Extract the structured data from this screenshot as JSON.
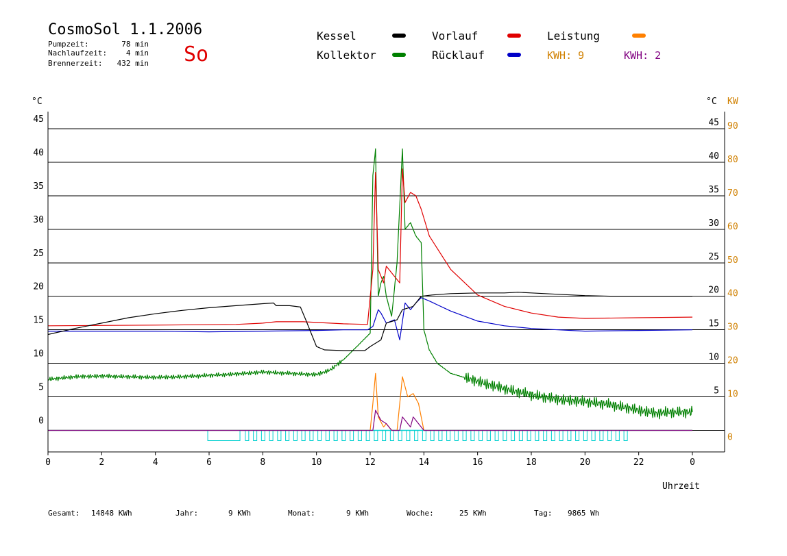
{
  "header": {
    "title": "CosmoSol 1.1.2006",
    "day": "So",
    "stats": [
      {
        "label": "Pumpzeit:",
        "value": "78 min"
      },
      {
        "label": "Nachlaufzeit:",
        "value": "4 min"
      },
      {
        "label": "Brennerzeit:",
        "value": "432 min"
      }
    ]
  },
  "legend": {
    "kessel": "Kessel",
    "kollektor": "Kollektor",
    "vorlauf": "Vorlauf",
    "ruecklauf": "Rücklauf",
    "leistung": "Leistung",
    "kwh1": "KWH: 9",
    "kwh2": "KWH: 2"
  },
  "axes": {
    "left_unit": "°C",
    "right_unit": "°C",
    "right_unit2": "KW",
    "x_label": "Uhrzeit"
  },
  "footer": {
    "gesamt_label": "Gesamt:",
    "gesamt_value": "14848 KWh",
    "jahr_label": "Jahr:",
    "jahr_value": "9 KWh",
    "monat_label": "Monat:",
    "monat_value": "9 KWh",
    "woche_label": "Woche:",
    "woche_value": "25 KWh",
    "tag_label": "Tag:",
    "tag_value": "9865 Wh"
  },
  "colors": {
    "kessel": "#000000",
    "kollektor": "#008000",
    "vorlauf": "#e00000",
    "ruecklauf": "#0000c8",
    "leistung": "#ff8000",
    "kwh2": "#800080",
    "pump": "#00d0d0",
    "title_day": "#e00000",
    "kw_axis": "#d08000"
  },
  "chart_data": {
    "type": "line",
    "title": "CosmoSol 1.1.2006",
    "xlabel": "Uhrzeit",
    "ylabel": "°C",
    "ylabel_right": "KW",
    "xlim": [
      0,
      24
    ],
    "ylim": [
      0,
      45
    ],
    "ylim_right_kw": [
      0,
      90
    ],
    "grid": true,
    "x_ticks": [
      "0",
      "2",
      "4",
      "6",
      "8",
      "10",
      "12",
      "14",
      "16",
      "18",
      "20",
      "22",
      "0"
    ],
    "y_ticks": [
      "0",
      "5",
      "10",
      "15",
      "20",
      "25",
      "30",
      "35",
      "40",
      "45"
    ],
    "y_ticks_right": [
      "5",
      "10",
      "15",
      "20",
      "25",
      "30",
      "35",
      "40",
      "45"
    ],
    "y_ticks_right_kw": [
      "0",
      "10",
      "20",
      "30",
      "40",
      "50",
      "60",
      "70",
      "80",
      "90"
    ],
    "series": [
      {
        "name": "Kessel",
        "color": "#000000",
        "points": [
          [
            0,
            14.3
          ],
          [
            1,
            15.2
          ],
          [
            2,
            16
          ],
          [
            3,
            16.8
          ],
          [
            4,
            17.4
          ],
          [
            5,
            17.9
          ],
          [
            6,
            18.3
          ],
          [
            7,
            18.6
          ],
          [
            8,
            18.9
          ],
          [
            8.4,
            19
          ],
          [
            8.5,
            18.6
          ],
          [
            9,
            18.6
          ],
          [
            9.4,
            18.4
          ],
          [
            9.6,
            16.5
          ],
          [
            10,
            12.5
          ],
          [
            10.3,
            12
          ],
          [
            11,
            11.9
          ],
          [
            11.8,
            11.9
          ],
          [
            12,
            12.5
          ],
          [
            12.4,
            13.5
          ],
          [
            12.6,
            16
          ],
          [
            13,
            16.5
          ],
          [
            13.2,
            18
          ],
          [
            13.6,
            18.5
          ],
          [
            13.9,
            20
          ],
          [
            14.3,
            20.2
          ],
          [
            15,
            20.4
          ],
          [
            16,
            20.5
          ],
          [
            17,
            20.5
          ],
          [
            17.5,
            20.6
          ],
          [
            18,
            20.5
          ],
          [
            19,
            20.3
          ],
          [
            20,
            20.1
          ],
          [
            21,
            20
          ],
          [
            22,
            20
          ],
          [
            24,
            20
          ]
        ]
      },
      {
        "name": "Vorlauf",
        "color": "#e00000",
        "points": [
          [
            0,
            15.6
          ],
          [
            4,
            15.7
          ],
          [
            7,
            15.8
          ],
          [
            8,
            16
          ],
          [
            8.5,
            16.2
          ],
          [
            9.5,
            16.2
          ],
          [
            10,
            16.1
          ],
          [
            11,
            15.9
          ],
          [
            11.9,
            15.8
          ],
          [
            12.1,
            24
          ],
          [
            12.2,
            38.5
          ],
          [
            12.3,
            24
          ],
          [
            12.5,
            22
          ],
          [
            12.6,
            24.5
          ],
          [
            12.8,
            23.5
          ],
          [
            13.1,
            22
          ],
          [
            13.2,
            39
          ],
          [
            13.3,
            34
          ],
          [
            13.5,
            35.5
          ],
          [
            13.7,
            35
          ],
          [
            13.9,
            33
          ],
          [
            14.2,
            29
          ],
          [
            15,
            24
          ],
          [
            16,
            20.2
          ],
          [
            17,
            18.5
          ],
          [
            18,
            17.5
          ],
          [
            19,
            16.9
          ],
          [
            20,
            16.7
          ],
          [
            22,
            16.8
          ],
          [
            24,
            16.9
          ]
        ]
      },
      {
        "name": "Rücklauf",
        "color": "#0000c8",
        "points": [
          [
            0,
            14.8
          ],
          [
            4,
            14.8
          ],
          [
            6,
            14.7
          ],
          [
            8,
            14.8
          ],
          [
            10,
            14.9
          ],
          [
            11,
            15
          ],
          [
            11.9,
            15
          ],
          [
            12.1,
            15.5
          ],
          [
            12.3,
            18
          ],
          [
            12.4,
            17.5
          ],
          [
            12.6,
            16
          ],
          [
            12.9,
            16.5
          ],
          [
            13.1,
            13.5
          ],
          [
            13.3,
            19
          ],
          [
            13.5,
            18
          ],
          [
            13.7,
            19
          ],
          [
            13.9,
            19.8
          ],
          [
            14.2,
            19.3
          ],
          [
            15,
            17.8
          ],
          [
            16,
            16.3
          ],
          [
            17,
            15.6
          ],
          [
            18,
            15.2
          ],
          [
            19,
            15
          ],
          [
            20,
            14.8
          ],
          [
            22,
            14.9
          ],
          [
            24,
            15
          ]
        ]
      },
      {
        "name": "Kollektor",
        "color": "#008000",
        "points": [
          [
            0,
            7.6
          ],
          [
            0.5,
            7.8
          ],
          [
            1,
            8
          ],
          [
            2,
            8.1
          ],
          [
            3,
            8
          ],
          [
            4,
            7.9
          ],
          [
            5,
            8
          ],
          [
            6,
            8.2
          ],
          [
            7,
            8.4
          ],
          [
            8,
            8.7
          ],
          [
            9,
            8.5
          ],
          [
            10,
            8.3
          ],
          [
            10.5,
            9
          ],
          [
            11,
            10.5
          ],
          [
            11.5,
            12.5
          ],
          [
            12,
            14.5
          ],
          [
            12.1,
            38
          ],
          [
            12.2,
            42
          ],
          [
            12.3,
            20
          ],
          [
            12.4,
            22
          ],
          [
            12.5,
            23
          ],
          [
            12.6,
            20
          ],
          [
            12.8,
            17
          ],
          [
            13,
            25
          ],
          [
            13.2,
            42
          ],
          [
            13.3,
            30
          ],
          [
            13.5,
            31
          ],
          [
            13.7,
            29
          ],
          [
            13.9,
            28
          ],
          [
            14,
            15
          ],
          [
            14.2,
            12
          ],
          [
            14.5,
            10
          ],
          [
            15,
            8.5
          ],
          [
            16,
            7.3
          ],
          [
            17,
            6.2
          ],
          [
            18,
            5.3
          ],
          [
            19,
            4.6
          ],
          [
            20,
            4.3
          ],
          [
            21,
            3.8
          ],
          [
            22,
            3
          ],
          [
            22.7,
            2.5
          ],
          [
            23,
            2.7
          ],
          [
            24,
            2.7
          ]
        ]
      },
      {
        "name": "Leistung",
        "color": "#ff8000",
        "points": [
          [
            0,
            0
          ],
          [
            12,
            0
          ],
          [
            12.1,
            4
          ],
          [
            12.2,
            8.5
          ],
          [
            12.3,
            2
          ],
          [
            12.5,
            0.5
          ],
          [
            12.6,
            1
          ],
          [
            12.8,
            0
          ],
          [
            13,
            0
          ],
          [
            13.1,
            4
          ],
          [
            13.2,
            8
          ],
          [
            13.4,
            5
          ],
          [
            13.6,
            5.5
          ],
          [
            13.8,
            4
          ],
          [
            13.9,
            2
          ],
          [
            14,
            0
          ],
          [
            24,
            0
          ]
        ]
      },
      {
        "name": "KWH: 2",
        "color": "#800080",
        "points": [
          [
            0,
            0
          ],
          [
            12.1,
            0
          ],
          [
            12.2,
            3
          ],
          [
            12.4,
            1.5
          ],
          [
            12.6,
            1
          ],
          [
            12.8,
            0
          ],
          [
            13.1,
            0
          ],
          [
            13.2,
            2
          ],
          [
            13.5,
            0.5
          ],
          [
            13.6,
            2
          ],
          [
            13.8,
            1
          ],
          [
            14,
            0
          ],
          [
            24,
            0
          ]
        ]
      }
    ]
  }
}
